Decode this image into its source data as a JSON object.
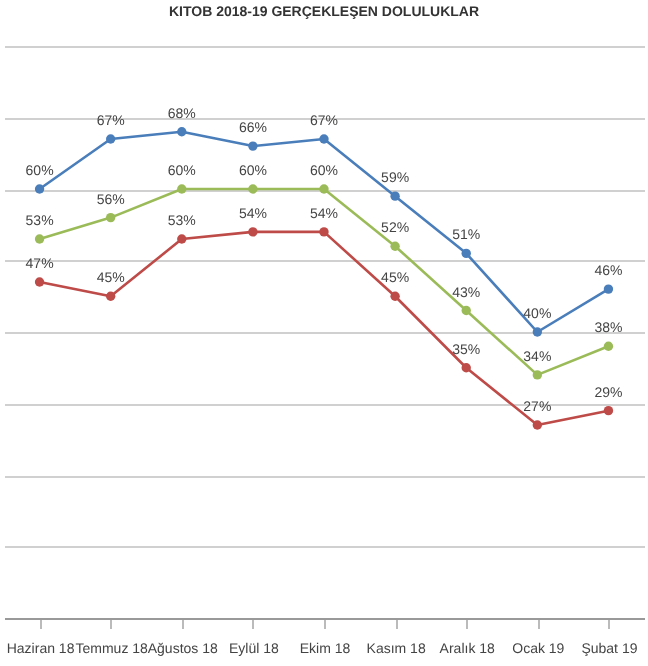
{
  "chart_data": {
    "type": "line",
    "title": "KITOB 2018-19 GERÇEKLEŞEN DOLULUKLAR",
    "categories": [
      "Haziran 18",
      "Temmuz 18",
      "Ağustos 18",
      "Eylül 18",
      "Ekim 18",
      "Kasım 18",
      "Aralık 18",
      "Ocak 19",
      "Şubat 19"
    ],
    "series": [
      {
        "color": "#4a7ebb",
        "values": [
          60,
          67,
          68,
          66,
          67,
          59,
          51,
          40,
          46
        ],
        "value_labels": [
          "60%",
          "67%",
          "68%",
          "66%",
          "67%",
          "59%",
          "51%",
          "40%",
          "46%"
        ]
      },
      {
        "color": "#9bbb59",
        "values": [
          53,
          56,
          60,
          60,
          60,
          52,
          43,
          34,
          38
        ],
        "value_labels": [
          "53%",
          "56%",
          "60%",
          "60%",
          "60%",
          "52%",
          "43%",
          "34%",
          "38%"
        ]
      },
      {
        "color": "#be4b48",
        "values": [
          47,
          45,
          53,
          54,
          54,
          45,
          35,
          27,
          29
        ],
        "value_labels": [
          "47%",
          "45%",
          "53%",
          "54%",
          "54%",
          "45%",
          "35%",
          "27%",
          "29%"
        ]
      }
    ],
    "ylim": [
      0,
      80
    ],
    "grid": "y",
    "tick_labels": "x",
    "marker": "circle",
    "line_style": "solid"
  }
}
